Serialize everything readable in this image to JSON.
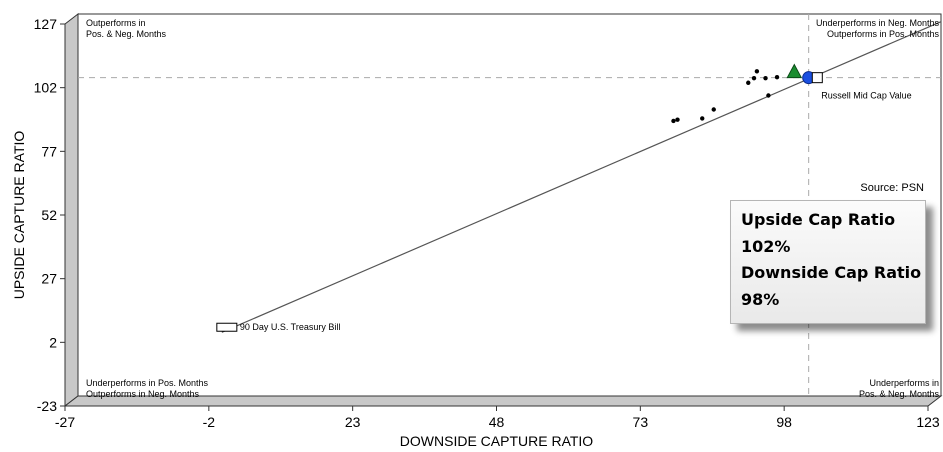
{
  "chart_data": {
    "type": "scatter",
    "xlabel": "DOWNSIDE CAPTURE RATIO",
    "ylabel": "UPSIDE CAPTURE RATIO",
    "xlim": [
      -27,
      123
    ],
    "ylim": [
      -23,
      127
    ],
    "xticks": [
      "-27",
      "-2",
      "23",
      "48",
      "73",
      "98",
      "123"
    ],
    "yticks": [
      "127",
      "102",
      "77",
      "52",
      "27",
      "2",
      "-23"
    ],
    "reference_lines": {
      "x": 100,
      "y": 102
    },
    "regression_line": {
      "from": [
        -2,
        2
      ],
      "to": [
        123,
        124
      ]
    },
    "corner_labels": {
      "top_left": [
        "Outperforms in",
        "Pos. & Neg. Months"
      ],
      "top_right": [
        "Underperforms in Neg. Months",
        "Outperforms in Pos. Months"
      ],
      "bottom_left": [
        "Underperforms in Pos. Months",
        "Outperforms in Neg. Months"
      ],
      "bottom_right": [
        "Underperforms in",
        "Pos. & Neg. Months"
      ]
    },
    "peers": [
      {
        "x": 76.5,
        "y": 85
      },
      {
        "x": 77.2,
        "y": 85.5
      },
      {
        "x": 81.5,
        "y": 86
      },
      {
        "x": 83.5,
        "y": 89.5
      },
      {
        "x": 89.5,
        "y": 100
      },
      {
        "x": 90.5,
        "y": 101.8
      },
      {
        "x": 91,
        "y": 104.5
      },
      {
        "x": 92.5,
        "y": 101.8
      },
      {
        "x": 94.5,
        "y": 102.2
      },
      {
        "x": 93,
        "y": 95
      }
    ],
    "highlighted": [
      {
        "name": "",
        "marker": "triangle",
        "color": "#1a8c2f",
        "x": 97.5,
        "y": 104
      },
      {
        "name": "",
        "marker": "circle",
        "color": "#1a4fe0",
        "x": 100,
        "y": 102
      },
      {
        "name": "Russell Mid Cap Value",
        "marker": "square",
        "color": "#ffffff",
        "x": 101.5,
        "y": 102
      },
      {
        "name": "90 Day U.S. Treasury Bill",
        "marker": "rect",
        "color": "#ffffff",
        "x": -2,
        "y": 4
      }
    ],
    "source": "Source:  PSN"
  },
  "summary": {
    "upside_label": "Upside Cap Ratio",
    "upside_value": "102%",
    "downside_label": "Downside Cap Ratio",
    "downside_value": "98%"
  },
  "colors": {
    "line": "#555555",
    "frame": "#bdbdbd",
    "dashed": "#aaaaaa"
  }
}
